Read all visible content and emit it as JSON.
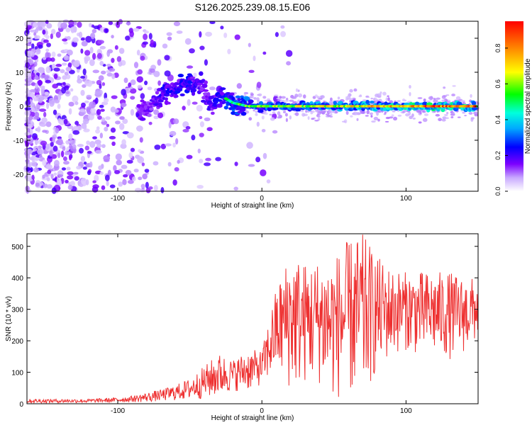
{
  "title": "S126.2025.239.08.15.E06",
  "chart_data": [
    {
      "type": "heatmap",
      "title": "S126.2025.239.08.15.E06",
      "xlabel": "Height of straight line (km)",
      "ylabel": "Frequency (Hz)",
      "xlim": [
        -163,
        150
      ],
      "ylim": [
        -25,
        25
      ],
      "xticks": [
        -100,
        0,
        100
      ],
      "yticks": [
        -20,
        -10,
        0,
        10,
        20
      ],
      "xtick_labels": [
        "-100",
        "0",
        "100"
      ],
      "ytick_labels": [
        "-20",
        "-10",
        "0",
        "10",
        "20"
      ],
      "colorbar": {
        "label": "Normalized spectral amplitude",
        "range": [
          0,
          0.95
        ],
        "ticks": [
          0.0,
          0.2,
          0.4,
          0.6,
          0.8
        ],
        "tick_labels": [
          "0.0",
          "0.2",
          "0.4",
          "0.6",
          "0.8"
        ],
        "colors": [
          "#ffffff",
          "#c8a8ff",
          "#7c00ff",
          "#0000ff",
          "#00aaff",
          "#00ffdd",
          "#00ff00",
          "#ffff00",
          "#ff8800",
          "#ff0000"
        ]
      },
      "ridge": {
        "description_points_x_km": [
          -80,
          -70,
          -60,
          -50,
          -42,
          -35,
          -28,
          -20,
          -10,
          0,
          25,
          50,
          75,
          100,
          125,
          148
        ],
        "freq_hz": [
          -1,
          3,
          5,
          7,
          6,
          0,
          3,
          1,
          0,
          0,
          0,
          0,
          0,
          0,
          0,
          0
        ],
        "amplitude": [
          0.3,
          0.4,
          0.45,
          0.45,
          0.35,
          0.4,
          0.5,
          0.55,
          0.6,
          0.6,
          0.65,
          0.7,
          0.75,
          0.85,
          0.9,
          0.92
        ]
      }
    },
    {
      "type": "line",
      "xlabel": "Height of straight line (km)",
      "ylabel": "SNR (10 * v/v)",
      "xlim": [
        -163,
        150
      ],
      "ylim": [
        0,
        540
      ],
      "xticks": [
        -100,
        0,
        100
      ],
      "yticks": [
        0,
        100,
        200,
        300,
        400,
        500
      ],
      "xtick_labels": [
        "-100",
        "0",
        "100"
      ],
      "ytick_labels": [
        "0",
        "100",
        "200",
        "300",
        "400",
        "500"
      ],
      "series": [
        {
          "name": "SNR",
          "color": "#ee3030",
          "envelope_x": [
            -163,
            -120,
            -100,
            -90,
            -80,
            -70,
            -60,
            -50,
            -40,
            -30,
            -20,
            -10,
            0,
            10,
            20,
            30,
            40,
            50,
            60,
            70,
            80,
            90,
            100,
            110,
            120,
            130,
            140,
            150
          ],
          "envelope_min": [
            2,
            3,
            4,
            5,
            5,
            8,
            10,
            12,
            15,
            20,
            40,
            40,
            60,
            90,
            40,
            60,
            60,
            10,
            20,
            5,
            100,
            150,
            170,
            150,
            150,
            140,
            160,
            200
          ],
          "envelope_max": [
            15,
            15,
            20,
            25,
            35,
            45,
            60,
            80,
            120,
            160,
            140,
            170,
            170,
            370,
            490,
            450,
            460,
            470,
            520,
            540,
            470,
            430,
            420,
            420,
            420,
            420,
            400,
            400
          ]
        }
      ]
    }
  ]
}
